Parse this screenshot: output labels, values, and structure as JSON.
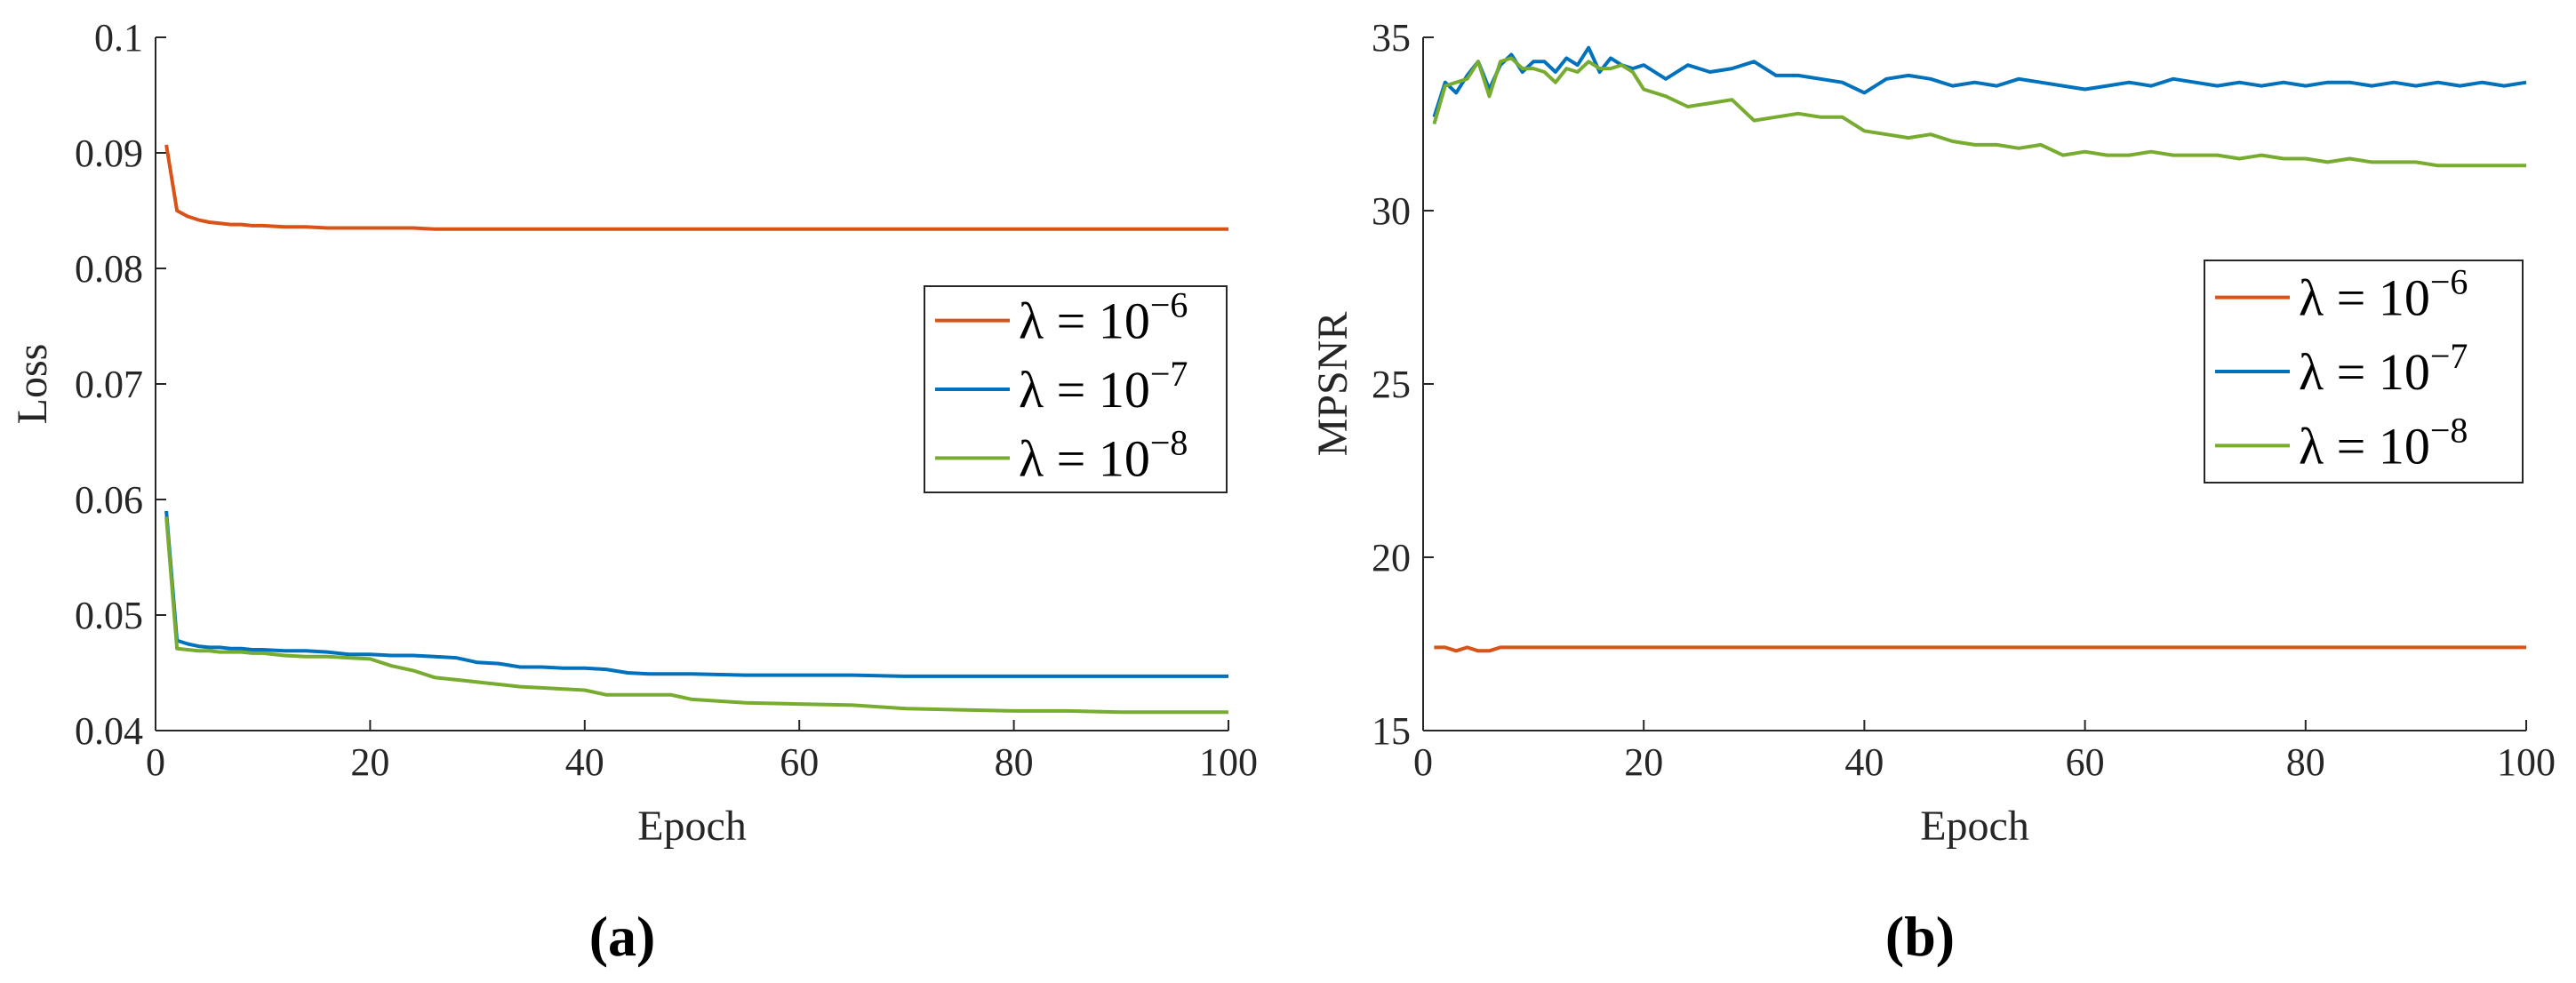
{
  "colors": {
    "s6": "#D95319",
    "s7": "#0072BD",
    "s8": "#77AC30"
  },
  "legend_labels": {
    "s6": {
      "prefix": "λ = 10",
      "exp": "−6"
    },
    "s7": {
      "prefix": "λ = 10",
      "exp": "−7"
    },
    "s8": {
      "prefix": "λ = 10",
      "exp": "−8"
    }
  },
  "chart_data": [
    {
      "type": "line",
      "panel": "(a)",
      "xlabel": "Epoch",
      "ylabel": "Loss",
      "xlim": [
        0,
        100
      ],
      "ylim": [
        0.04,
        0.1
      ],
      "xticks": [
        "0",
        "20",
        "40",
        "60",
        "80",
        "100"
      ],
      "yticks": [
        "0.04",
        "0.05",
        "0.06",
        "0.07",
        "0.08",
        "0.09",
        "0.1"
      ],
      "legend_position": "right",
      "x": [
        1,
        2,
        3,
        4,
        5,
        6,
        7,
        8,
        9,
        10,
        12,
        14,
        16,
        18,
        20,
        22,
        24,
        26,
        28,
        30,
        32,
        34,
        36,
        38,
        40,
        42,
        44,
        46,
        48,
        50,
        55,
        60,
        65,
        70,
        75,
        80,
        85,
        90,
        95,
        100
      ],
      "series": [
        {
          "key": "s6",
          "values": [
            0.0907,
            0.085,
            0.0845,
            0.0842,
            0.084,
            0.0839,
            0.0838,
            0.0838,
            0.0837,
            0.0837,
            0.0836,
            0.0836,
            0.0835,
            0.0835,
            0.0835,
            0.0835,
            0.0835,
            0.0834,
            0.0834,
            0.0834,
            0.0834,
            0.0834,
            0.0834,
            0.0834,
            0.0834,
            0.0834,
            0.0834,
            0.0834,
            0.0834,
            0.0834,
            0.0834,
            0.0834,
            0.0834,
            0.0834,
            0.0834,
            0.0834,
            0.0834,
            0.0834,
            0.0834,
            0.0834
          ]
        },
        {
          "key": "s7",
          "values": [
            0.059,
            0.0478,
            0.0475,
            0.0473,
            0.0472,
            0.0472,
            0.0471,
            0.0471,
            0.047,
            0.047,
            0.0469,
            0.0469,
            0.0468,
            0.0466,
            0.0466,
            0.0465,
            0.0465,
            0.0464,
            0.0463,
            0.0459,
            0.0458,
            0.0455,
            0.0455,
            0.0454,
            0.0454,
            0.0453,
            0.045,
            0.0449,
            0.0449,
            0.0449,
            0.0448,
            0.0448,
            0.0448,
            0.0447,
            0.0447,
            0.0447,
            0.0447,
            0.0447,
            0.0447,
            0.0447
          ]
        },
        {
          "key": "s8",
          "values": [
            0.0585,
            0.0471,
            0.047,
            0.0469,
            0.0469,
            0.0468,
            0.0468,
            0.0468,
            0.0467,
            0.0467,
            0.0465,
            0.0464,
            0.0464,
            0.0463,
            0.0462,
            0.0456,
            0.0452,
            0.0446,
            0.0444,
            0.0442,
            0.044,
            0.0438,
            0.0437,
            0.0436,
            0.0435,
            0.0431,
            0.0431,
            0.0431,
            0.0431,
            0.0427,
            0.0424,
            0.0423,
            0.0422,
            0.0419,
            0.0418,
            0.0417,
            0.0417,
            0.0416,
            0.0416,
            0.0416
          ]
        }
      ]
    },
    {
      "type": "line",
      "panel": "(b)",
      "xlabel": "Epoch",
      "ylabel": "MPSNR",
      "xlim": [
        0,
        100
      ],
      "ylim": [
        15,
        35
      ],
      "xticks": [
        "0",
        "20",
        "40",
        "60",
        "80",
        "100"
      ],
      "yticks": [
        "15",
        "20",
        "25",
        "30",
        "35"
      ],
      "legend_position": "right",
      "x": [
        1,
        2,
        3,
        4,
        5,
        6,
        7,
        8,
        9,
        10,
        11,
        12,
        13,
        14,
        15,
        16,
        17,
        18,
        19,
        20,
        22,
        24,
        26,
        28,
        30,
        32,
        34,
        36,
        38,
        40,
        42,
        44,
        46,
        48,
        50,
        52,
        54,
        56,
        58,
        60,
        62,
        64,
        66,
        68,
        70,
        72,
        74,
        76,
        78,
        80,
        82,
        84,
        86,
        88,
        90,
        92,
        94,
        96,
        98,
        100
      ],
      "series": [
        {
          "key": "s6",
          "values": [
            17.4,
            17.4,
            17.3,
            17.4,
            17.3,
            17.3,
            17.4,
            17.4,
            17.4,
            17.4,
            17.4,
            17.4,
            17.4,
            17.4,
            17.4,
            17.4,
            17.4,
            17.4,
            17.4,
            17.4,
            17.4,
            17.4,
            17.4,
            17.4,
            17.4,
            17.4,
            17.4,
            17.4,
            17.4,
            17.4,
            17.4,
            17.4,
            17.4,
            17.4,
            17.4,
            17.4,
            17.4,
            17.4,
            17.4,
            17.4,
            17.4,
            17.4,
            17.4,
            17.4,
            17.4,
            17.4,
            17.4,
            17.4,
            17.4,
            17.4,
            17.4,
            17.4,
            17.4,
            17.4,
            17.4,
            17.4,
            17.4,
            17.4,
            17.4,
            17.4
          ]
        },
        {
          "key": "s7",
          "values": [
            32.7,
            33.7,
            33.4,
            33.9,
            34.3,
            33.5,
            34.2,
            34.5,
            34.0,
            34.3,
            34.3,
            34.0,
            34.4,
            34.2,
            34.7,
            34.0,
            34.4,
            34.2,
            34.1,
            34.2,
            33.8,
            34.2,
            34.0,
            34.1,
            34.3,
            33.9,
            33.9,
            33.8,
            33.7,
            33.4,
            33.8,
            33.9,
            33.8,
            33.6,
            33.7,
            33.6,
            33.8,
            33.7,
            33.6,
            33.5,
            33.6,
            33.7,
            33.6,
            33.8,
            33.7,
            33.6,
            33.7,
            33.6,
            33.7,
            33.6,
            33.7,
            33.7,
            33.6,
            33.7,
            33.6,
            33.7,
            33.6,
            33.7,
            33.6,
            33.7
          ]
        },
        {
          "key": "s8",
          "values": [
            32.5,
            33.6,
            33.7,
            33.8,
            34.3,
            33.3,
            34.3,
            34.4,
            34.1,
            34.1,
            34.0,
            33.7,
            34.1,
            34.0,
            34.3,
            34.1,
            34.1,
            34.2,
            34.0,
            33.5,
            33.3,
            33.0,
            33.1,
            33.2,
            32.6,
            32.7,
            32.8,
            32.7,
            32.7,
            32.3,
            32.2,
            32.1,
            32.2,
            32.0,
            31.9,
            31.9,
            31.8,
            31.9,
            31.6,
            31.7,
            31.6,
            31.6,
            31.7,
            31.6,
            31.6,
            31.6,
            31.5,
            31.6,
            31.5,
            31.5,
            31.4,
            31.5,
            31.4,
            31.4,
            31.4,
            31.3,
            31.3,
            31.3,
            31.3,
            31.3
          ]
        }
      ]
    }
  ]
}
